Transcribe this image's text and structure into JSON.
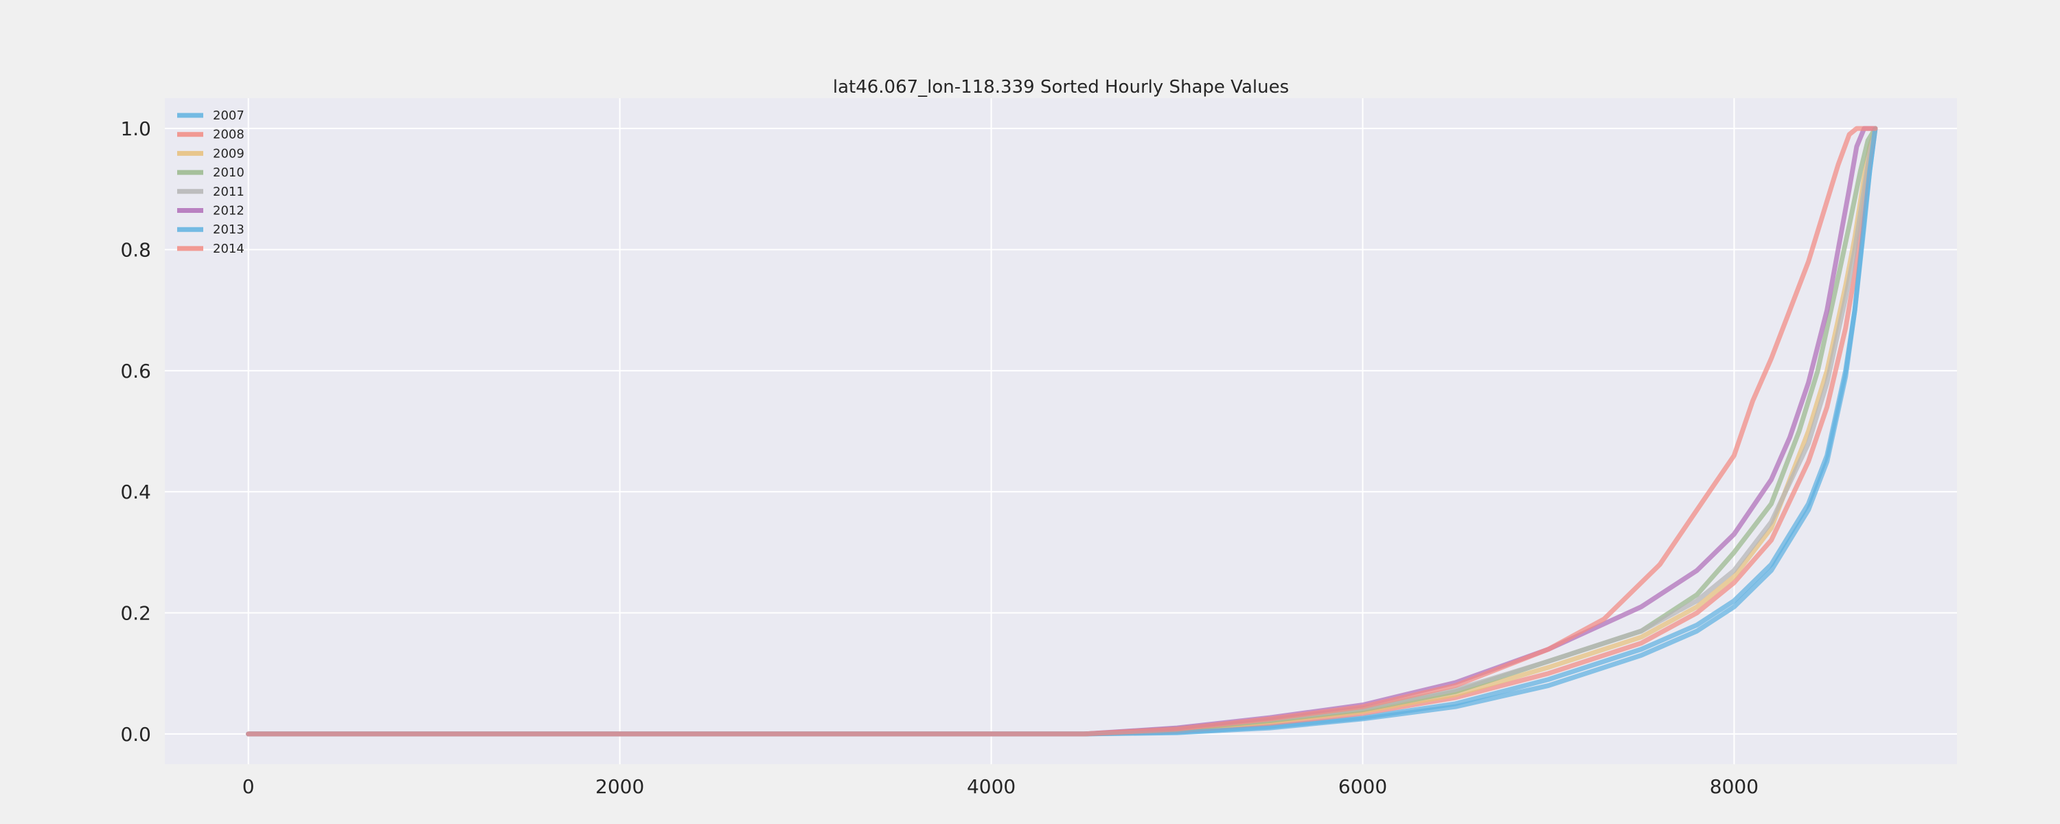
{
  "chart_data": {
    "type": "line",
    "title": "lat46.067_lon-118.339 Sorted Hourly Shape Values",
    "xlabel": "",
    "ylabel": "",
    "xlim": [
      -450,
      9200
    ],
    "ylim": [
      -0.05,
      1.05
    ],
    "xticks": [
      0,
      2000,
      4000,
      6000,
      8000
    ],
    "xtick_labels": [
      "0",
      "2000",
      "4000",
      "6000",
      "8000"
    ],
    "yticks": [
      0.0,
      0.2,
      0.4,
      0.6,
      0.8,
      1.0
    ],
    "ytick_labels": [
      "0.0",
      "0.2",
      "0.4",
      "0.6",
      "0.8",
      "1.0"
    ],
    "grid": true,
    "legend_position": "top-left",
    "series": [
      {
        "name": "2007",
        "color": "#5fb2e0",
        "x": [
          0,
          4500,
          5000,
          5500,
          6000,
          6500,
          7000,
          7500,
          7800,
          8000,
          8200,
          8400,
          8500,
          8600,
          8650,
          8700,
          8730,
          8760
        ],
        "y": [
          0,
          0,
          0.003,
          0.012,
          0.027,
          0.05,
          0.09,
          0.14,
          0.18,
          0.22,
          0.28,
          0.38,
          0.46,
          0.6,
          0.7,
          0.85,
          0.93,
          1.0
        ]
      },
      {
        "name": "2008",
        "color": "#f28b82",
        "x": [
          0,
          4500,
          5000,
          5500,
          6000,
          6500,
          7000,
          7500,
          7800,
          8000,
          8200,
          8400,
          8500,
          8600,
          8650,
          8700,
          8730,
          8760
        ],
        "y": [
          0,
          0,
          0.005,
          0.017,
          0.034,
          0.06,
          0.1,
          0.15,
          0.2,
          0.25,
          0.32,
          0.45,
          0.54,
          0.67,
          0.76,
          0.88,
          0.95,
          1.0
        ]
      },
      {
        "name": "2009",
        "color": "#e8c07a",
        "x": [
          0,
          4500,
          5000,
          5500,
          6000,
          6500,
          7000,
          7500,
          7800,
          8000,
          8200,
          8400,
          8500,
          8600,
          8650,
          8700,
          8730,
          8760
        ],
        "y": [
          0,
          0,
          0.007,
          0.02,
          0.037,
          0.065,
          0.11,
          0.16,
          0.21,
          0.26,
          0.34,
          0.5,
          0.6,
          0.74,
          0.82,
          0.92,
          0.97,
          1.0
        ]
      },
      {
        "name": "2010",
        "color": "#9ab98c",
        "x": [
          0,
          4500,
          5000,
          5500,
          6000,
          6500,
          7000,
          7500,
          7800,
          8000,
          8200,
          8350,
          8450,
          8550,
          8620,
          8680,
          8720,
          8760
        ],
        "y": [
          0,
          0,
          0.008,
          0.022,
          0.04,
          0.07,
          0.12,
          0.17,
          0.23,
          0.3,
          0.38,
          0.5,
          0.6,
          0.74,
          0.84,
          0.93,
          0.98,
          1.0
        ]
      },
      {
        "name": "2011",
        "color": "#b5b5b5",
        "x": [
          0,
          4500,
          5000,
          5500,
          6000,
          6500,
          7000,
          7500,
          7800,
          8000,
          8200,
          8400,
          8500,
          8600,
          8650,
          8700,
          8730,
          8760
        ],
        "y": [
          0,
          0,
          0.009,
          0.024,
          0.042,
          0.073,
          0.12,
          0.17,
          0.22,
          0.27,
          0.35,
          0.48,
          0.58,
          0.72,
          0.8,
          0.9,
          0.96,
          1.0
        ]
      },
      {
        "name": "2012",
        "color": "#b06fb8",
        "x": [
          0,
          4500,
          5000,
          5500,
          6000,
          6500,
          7000,
          7500,
          7800,
          8000,
          8200,
          8300,
          8400,
          8500,
          8560,
          8620,
          8660,
          8700,
          8750
        ],
        "y": [
          0,
          0,
          0.01,
          0.027,
          0.048,
          0.085,
          0.14,
          0.21,
          0.27,
          0.33,
          0.42,
          0.49,
          0.58,
          0.7,
          0.8,
          0.9,
          0.97,
          1.0,
          1.0
        ]
      },
      {
        "name": "2013",
        "color": "#5fb2e0",
        "x": [
          0,
          4500,
          5000,
          5500,
          6000,
          6500,
          7000,
          7500,
          7800,
          8000,
          8200,
          8400,
          8500,
          8600,
          8650,
          8700,
          8730,
          8760
        ],
        "y": [
          0,
          0,
          0.002,
          0.01,
          0.025,
          0.045,
          0.08,
          0.13,
          0.17,
          0.21,
          0.27,
          0.37,
          0.45,
          0.59,
          0.7,
          0.84,
          0.93,
          1.0
        ]
      },
      {
        "name": "2014",
        "color": "#f28b82",
        "x": [
          0,
          4500,
          5000,
          5500,
          6000,
          6500,
          7000,
          7300,
          7600,
          7800,
          8000,
          8100,
          8200,
          8300,
          8400,
          8500,
          8560,
          8620,
          8660,
          8760
        ],
        "y": [
          0,
          0,
          0.008,
          0.025,
          0.045,
          0.08,
          0.14,
          0.19,
          0.28,
          0.37,
          0.46,
          0.55,
          0.62,
          0.7,
          0.78,
          0.88,
          0.94,
          0.99,
          1.0,
          1.0
        ]
      }
    ]
  }
}
